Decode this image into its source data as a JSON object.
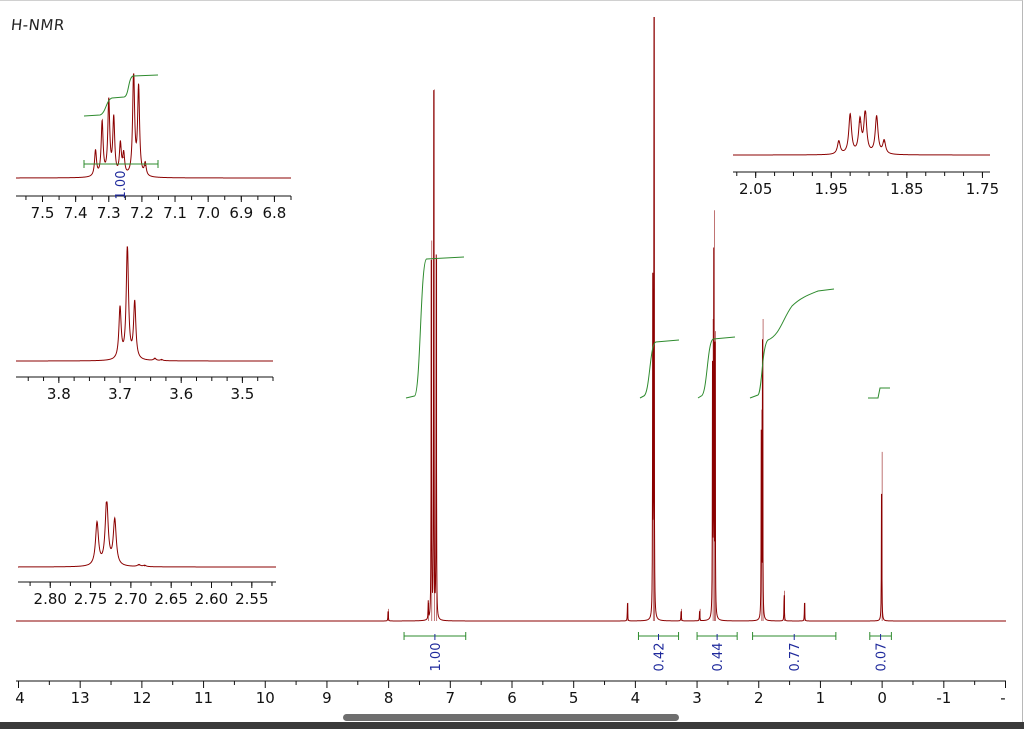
{
  "title": "H-NMR",
  "colors": {
    "spectrum": "#8b0000",
    "integral": "#2e8b2e",
    "integral_label": "#1f2a9c",
    "axis": "#111111"
  },
  "chart_data": [
    {
      "type": "line",
      "name": "main-spectrum",
      "xlabel": "",
      "ylabel": "",
      "xlim": [
        14,
        -2
      ],
      "x_reversed": true,
      "x_ticks": [
        "4",
        "13",
        "12",
        "11",
        "10",
        "9",
        "8",
        "7",
        "6",
        "5",
        "4",
        "3",
        "2",
        "1",
        "0",
        "-1",
        "-"
      ],
      "peaks": [
        {
          "ppm": 7.26,
          "height": 0.88
        },
        {
          "ppm": 7.3,
          "height": 0.63
        },
        {
          "ppm": 7.22,
          "height": 0.6
        },
        {
          "ppm": 7.35,
          "height": 0.03
        },
        {
          "ppm": 8.0,
          "height": 0.02
        },
        {
          "ppm": 3.69,
          "height": 1.0
        },
        {
          "ppm": 3.71,
          "height": 0.55
        },
        {
          "ppm": 2.72,
          "height": 0.68
        },
        {
          "ppm": 2.74,
          "height": 0.5
        },
        {
          "ppm": 2.7,
          "height": 0.48
        },
        {
          "ppm": 1.93,
          "height": 0.5
        },
        {
          "ppm": 1.95,
          "height": 0.35
        },
        {
          "ppm": 1.58,
          "height": 0.05
        },
        {
          "ppm": 1.25,
          "height": 0.03
        },
        {
          "ppm": 0.0,
          "height": 0.28
        },
        {
          "ppm": 4.12,
          "height": 0.03
        },
        {
          "ppm": 3.25,
          "height": 0.02
        },
        {
          "ppm": 2.95,
          "height": 0.02
        }
      ],
      "integrals": [
        {
          "label": "1.00",
          "from": 7.75,
          "to": 6.75
        },
        {
          "label": "0.42",
          "from": 3.95,
          "to": 3.3
        },
        {
          "label": "0.44",
          "from": 3.0,
          "to": 2.35
        },
        {
          "label": "0.77",
          "from": 2.1,
          "to": 0.75
        },
        {
          "label": "0.07",
          "from": 0.2,
          "to": -0.15
        }
      ]
    },
    {
      "type": "line",
      "name": "inset-aromatic",
      "x_ticks": [
        "7.5",
        "7.4",
        "7.3",
        "7.2",
        "7.1",
        "7.0",
        "6.9",
        "6.8"
      ],
      "xlim": [
        7.58,
        6.75
      ],
      "integrals": [
        {
          "label": "1.00",
          "from": 7.37,
          "to": 7.15
        }
      ]
    },
    {
      "type": "line",
      "name": "inset-3.7",
      "x_ticks": [
        "3.8",
        "3.7",
        "3.6",
        "3.5"
      ],
      "xlim": [
        3.87,
        3.45
      ]
    },
    {
      "type": "line",
      "name": "inset-2.7",
      "x_ticks": [
        "2.80",
        "2.75",
        "2.70",
        "2.65",
        "2.60",
        "2.55"
      ],
      "xlim": [
        2.84,
        2.52
      ]
    },
    {
      "type": "line",
      "name": "inset-1.9",
      "x_ticks": [
        "2.05",
        "1.95",
        "1.85",
        "1.75"
      ],
      "xlim": [
        2.08,
        1.74
      ]
    }
  ]
}
